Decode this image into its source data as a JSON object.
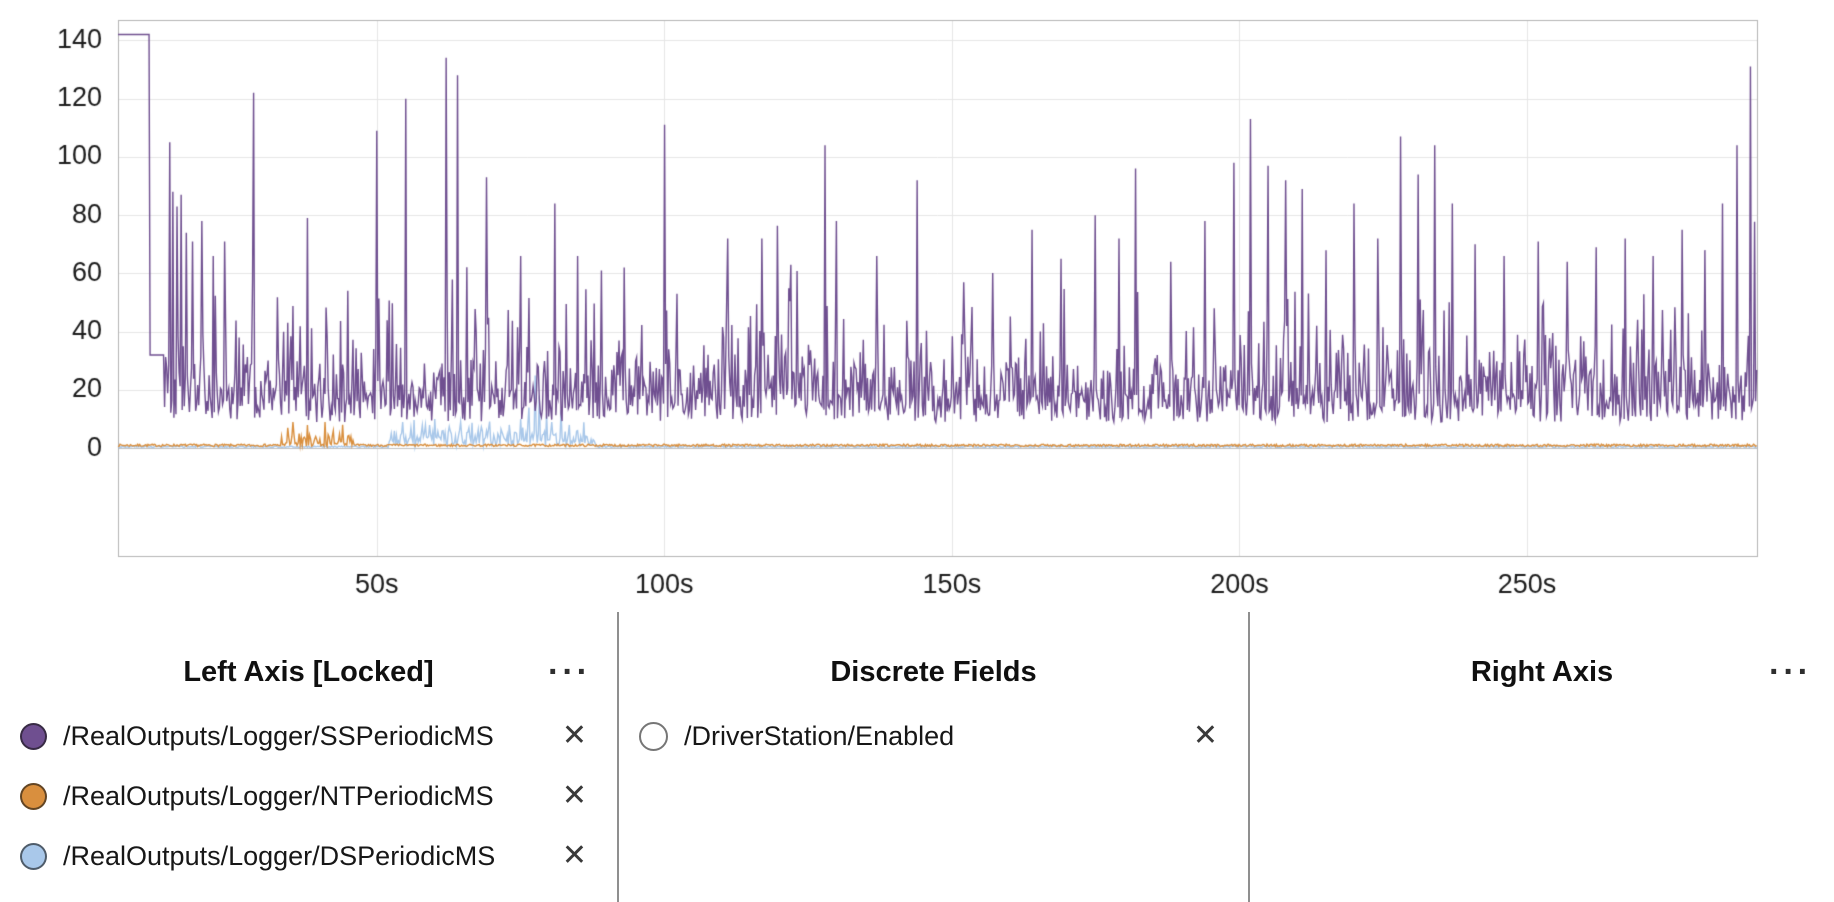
{
  "icons": {
    "remove": "✕",
    "ellipsis": "···"
  },
  "chart_data": {
    "type": "line",
    "title": "",
    "xlabel": "",
    "ylabel": "",
    "x_tick_suffix": "s",
    "x_ticks": [
      50,
      100,
      150,
      200,
      250
    ],
    "y_ticks": [
      0,
      20,
      40,
      60,
      80,
      100,
      120,
      140
    ],
    "xlim": [
      5,
      290
    ],
    "ylim": [
      -37,
      147
    ],
    "grid": true,
    "legend_position": "below",
    "style": {
      "grid_color": "#e6e6e6",
      "zero_line_color": "#c2c2c2",
      "border_color": "#b3b3b3",
      "label_color": "#1c1c1c",
      "background": "#ffffff"
    },
    "series": [
      {
        "name": "/RealOutputs/Logger/SSPeriodicMS",
        "color": "#6f4f90",
        "line_width": 1.4,
        "description": "Starts flat at 142 ms, steps to 32 ms, then noisy 9-45 ms band with frequent spikes 50-135 ms for the whole log",
        "model": {
          "seed": 11,
          "dt": 0.18,
          "flats": [
            [
              5,
              10.5,
              142
            ],
            [
              10.5,
              13,
              32
            ]
          ],
          "noise": {
            "t0": 13,
            "t1": 290,
            "min": 9,
            "span": 10,
            "p1": 0.5,
            "a1": 17,
            "p2": 0.17,
            "a2": 26,
            "p3": 0.045,
            "a3": 38
          },
          "spikes": [
            [
              14,
              105
            ],
            [
              14.6,
              88
            ],
            [
              15.2,
              83
            ],
            [
              16,
              87
            ],
            [
              16.8,
              74
            ],
            [
              18,
              71
            ],
            [
              19.5,
              78
            ],
            [
              21.5,
              66
            ],
            [
              23.5,
              71
            ],
            [
              28.5,
              122
            ],
            [
              38,
              79
            ],
            [
              50,
              109
            ],
            [
              55,
              120
            ],
            [
              62,
              134
            ],
            [
              64,
              128
            ],
            [
              69,
              93
            ],
            [
              75,
              66
            ],
            [
              81,
              84
            ],
            [
              85,
              66
            ],
            [
              89,
              61
            ],
            [
              93,
              62
            ],
            [
              100,
              111
            ],
            [
              111,
              72
            ],
            [
              117,
              72
            ],
            [
              122,
              63
            ],
            [
              128,
              104
            ],
            [
              130,
              78
            ],
            [
              137,
              66
            ],
            [
              144,
              92
            ],
            [
              152,
              57
            ],
            [
              164,
              75
            ],
            [
              169,
              65
            ],
            [
              175,
              80
            ],
            [
              179,
              72
            ],
            [
              182,
              96
            ],
            [
              188,
              64
            ],
            [
              194,
              78
            ],
            [
              199,
              98
            ],
            [
              202,
              113
            ],
            [
              205,
              97
            ],
            [
              208,
              92
            ],
            [
              211,
              89
            ],
            [
              215,
              68
            ],
            [
              220,
              84
            ],
            [
              224,
              72
            ],
            [
              228,
              107
            ],
            [
              231,
              94
            ],
            [
              234,
              104
            ],
            [
              237,
              84
            ],
            [
              241,
              70
            ],
            [
              246,
              66
            ],
            [
              252,
              71
            ],
            [
              257,
              64
            ],
            [
              262,
              69
            ],
            [
              267,
              72
            ],
            [
              272,
              66
            ],
            [
              277,
              75
            ],
            [
              281,
              68
            ],
            [
              284,
              84
            ],
            [
              286.5,
              104
            ],
            [
              288.8,
              131
            ]
          ]
        }
      },
      {
        "name": "/RealOutputs/Logger/NTPeriodicMS",
        "color": "#d98f3e",
        "line_width": 1.4,
        "description": "Near-zero (~1 ms) baseline across the log with a burst of 3-9 ms spikes around 33-46 s",
        "model": {
          "seed": 7,
          "dt": 0.18,
          "baseline": 1.0,
          "baseline_noise": 0.4,
          "noise": {
            "t0": 33,
            "t1": 46,
            "min": 0.5,
            "span": 1.5,
            "p1": 0.4,
            "a1": 4,
            "p2": 0.15,
            "a2": 4,
            "p3": 0,
            "a3": 0
          },
          "spikes": [
            [
              33.5,
              4
            ],
            [
              34.5,
              7
            ],
            [
              35.5,
              9
            ],
            [
              36.5,
              5
            ],
            [
              38,
              8
            ],
            [
              39.5,
              3
            ],
            [
              41,
              9
            ],
            [
              42.5,
              6
            ],
            [
              44,
              8
            ],
            [
              45.5,
              4
            ]
          ]
        }
      },
      {
        "name": "/RealOutputs/Logger/DSPeriodicMS",
        "color": "#a9c8ea",
        "line_width": 1.4,
        "description": "Near-zero (~0.5 ms) baseline with a burst of 2-25 ms spikes around 52-88 s, tallest ~25 ms",
        "model": {
          "seed": 3,
          "dt": 0.18,
          "baseline": 0.5,
          "baseline_noise": 0.25,
          "noise": {
            "t0": 52,
            "t1": 88,
            "min": 0.5,
            "span": 2.5,
            "p1": 0.5,
            "a1": 4,
            "p2": 0.2,
            "a2": 6,
            "p3": 0,
            "a3": 0
          },
          "spikes": [
            [
              53,
              6
            ],
            [
              54.5,
              9
            ],
            [
              56,
              7
            ],
            [
              57,
              4
            ],
            [
              58.5,
              8
            ],
            [
              60,
              10
            ],
            [
              61.5,
              6
            ],
            [
              63,
              5
            ],
            [
              64.5,
              9
            ],
            [
              66,
              7
            ],
            [
              67.5,
              4
            ],
            [
              69,
              6
            ],
            [
              71,
              5
            ],
            [
              73,
              8
            ],
            [
              75,
              10
            ],
            [
              76.5,
              14
            ],
            [
              77.5,
              25
            ],
            [
              78.3,
              18
            ],
            [
              79.5,
              12
            ],
            [
              80.5,
              9
            ],
            [
              82,
              13
            ],
            [
              83.5,
              8
            ],
            [
              85,
              6
            ],
            [
              86.5,
              4
            ]
          ]
        }
      }
    ]
  },
  "legend": {
    "left_axis": {
      "title": "Left Axis [Locked]",
      "items": [
        {
          "label": "/RealOutputs/Logger/SSPeriodicMS",
          "color": "#6f4f90",
          "filled": true
        },
        {
          "label": "/RealOutputs/Logger/NTPeriodicMS",
          "color": "#d98f3e",
          "filled": true
        },
        {
          "label": "/RealOutputs/Logger/DSPeriodicMS",
          "color": "#a9c8ea",
          "filled": true
        }
      ]
    },
    "discrete": {
      "title": "Discrete Fields",
      "items": [
        {
          "label": "/DriverStation/Enabled",
          "color": "#ffffff",
          "filled": false
        }
      ]
    },
    "right_axis": {
      "title": "Right Axis",
      "items": []
    }
  }
}
